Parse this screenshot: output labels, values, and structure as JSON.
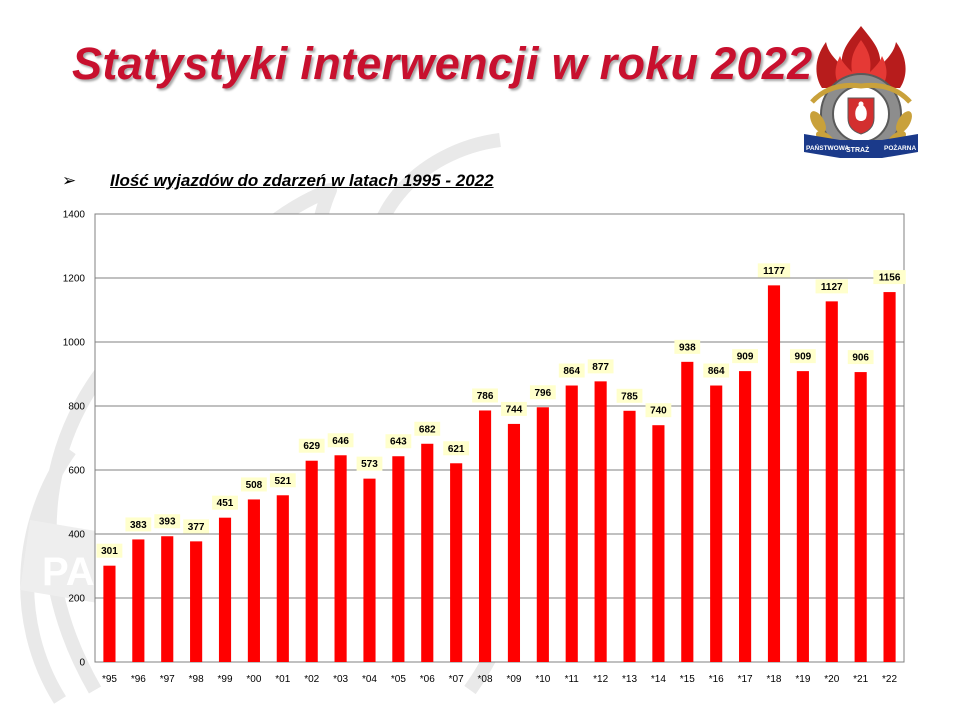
{
  "title": "Statystyki interwencji w roku 2022",
  "subtitle": "Ilość wyjazdów do zdarzeń w latach 1995 - 2022",
  "bullet_glyph": "➢",
  "logo": {
    "icon": "psp-emblem-icon",
    "text_left": "PAŃSTWOWA",
    "text_mid": "STRAŻ",
    "text_right": "POŻARNA"
  },
  "watermark": {
    "icon": "psp-flame-watermark-icon",
    "text": "PA"
  },
  "colors": {
    "title": "#c8102e",
    "bar": "#ff0000",
    "label_bg": "#ffffcc",
    "plot_bg": "#ffffff",
    "grid": "#808080"
  },
  "chart_data": {
    "type": "bar",
    "title": "Ilość wyjazdów do zdarzeń w latach 1995 - 2022",
    "xlabel": "",
    "ylabel": "",
    "categories": [
      "*95",
      "*96",
      "*97",
      "*98",
      "*99",
      "*00",
      "*01",
      "*02",
      "*03",
      "*04",
      "*05",
      "*06",
      "*07",
      "*08",
      "*09",
      "*10",
      "*11",
      "*12",
      "*13",
      "*14",
      "*15",
      "*16",
      "*17",
      "*18",
      "*19",
      "*20",
      "*21",
      "*22"
    ],
    "values": [
      301,
      383,
      393,
      377,
      451,
      508,
      521,
      629,
      646,
      573,
      643,
      682,
      621,
      786,
      744,
      796,
      864,
      877,
      785,
      740,
      938,
      864,
      909,
      1177,
      909,
      1127,
      906,
      1156
    ],
    "ylim": [
      0,
      1400
    ],
    "yticks": [
      0,
      200,
      400,
      600,
      800,
      1000,
      1200,
      1400
    ],
    "grid": true,
    "legend": "none",
    "data_labels": true
  }
}
